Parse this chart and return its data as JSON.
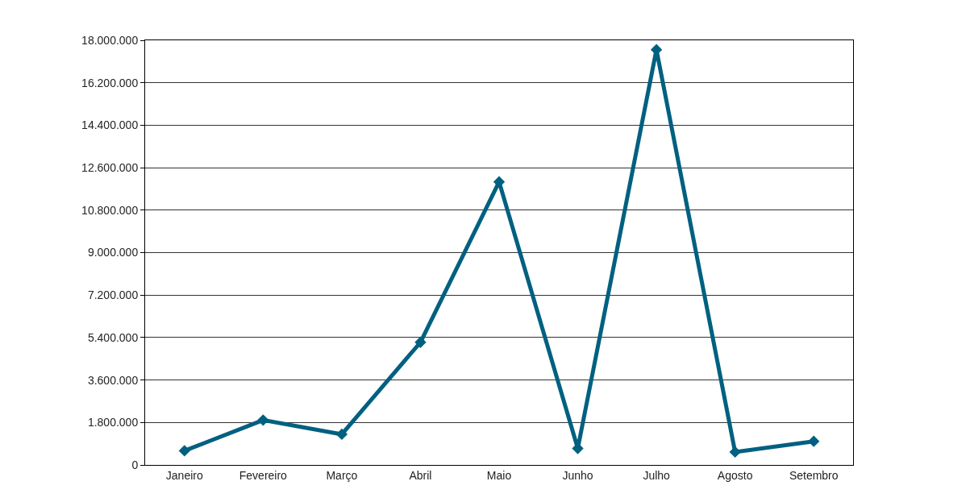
{
  "chart_data": {
    "type": "line",
    "categories": [
      "Janeiro",
      "Fevereiro",
      "Março",
      "Abril",
      "Maio",
      "Junho",
      "Julho",
      "Agosto",
      "Setembro"
    ],
    "series": [
      {
        "color": "#006080",
        "values": [
          600000,
          1900000,
          1300000,
          5200000,
          12000000,
          700000,
          17600000,
          550000,
          1000000
        ]
      }
    ],
    "ylim": [
      0,
      18000000
    ],
    "yticks": [
      {
        "value": 0,
        "label": "0"
      },
      {
        "value": 1800000,
        "label": "1.800.000"
      },
      {
        "value": 3600000,
        "label": "3.600.000"
      },
      {
        "value": 5400000,
        "label": "5.400.000"
      },
      {
        "value": 7200000,
        "label": "7.200.000"
      },
      {
        "value": 9000000,
        "label": "9.000.000"
      },
      {
        "value": 10800000,
        "label": "10.800.000"
      },
      {
        "value": 12600000,
        "label": "12.600.000"
      },
      {
        "value": 14400000,
        "label": "14.400.000"
      },
      {
        "value": 16200000,
        "label": "16.200.000"
      },
      {
        "value": 18000000,
        "label": "18.000.000"
      }
    ],
    "grid": "y",
    "marker": "diamond",
    "line_style": "solid"
  }
}
